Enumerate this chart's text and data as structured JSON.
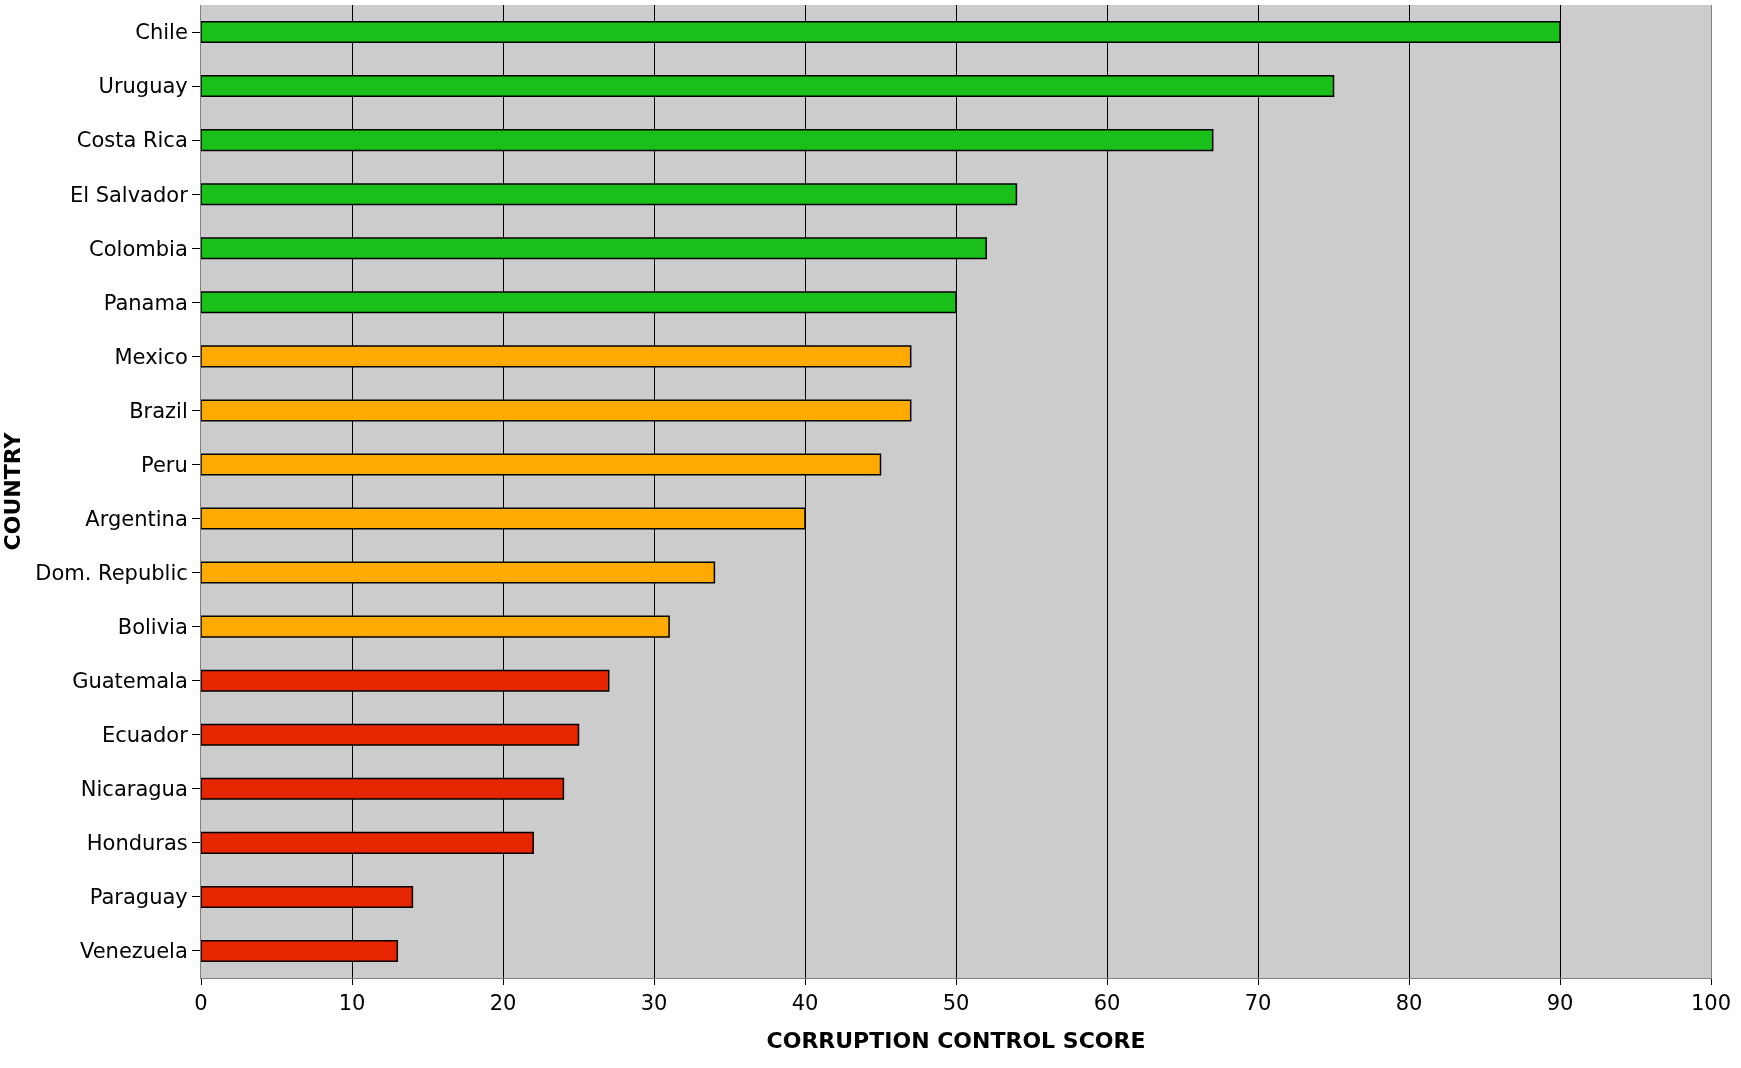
{
  "chart_data": {
    "type": "bar",
    "orientation": "horizontal",
    "xlabel": "CORRUPTION CONTROL SCORE",
    "ylabel": "COUNTRY",
    "categories": [
      "Chile",
      "Uruguay",
      "Costa Rica",
      "El Salvador",
      "Colombia",
      "Panama",
      "Mexico",
      "Brazil",
      "Peru",
      "Argentina",
      "Dom. Republic",
      "Bolivia",
      "Guatemala",
      "Ecuador",
      "Nicaragua",
      "Honduras",
      "Paraguay",
      "Venezuela"
    ],
    "values": [
      90,
      75,
      67,
      54,
      52,
      50,
      47,
      47,
      45,
      40,
      34,
      31,
      27,
      25,
      24,
      22,
      14,
      13
    ],
    "colors": [
      "#1abf1a",
      "#1abf1a",
      "#1abf1a",
      "#1abf1a",
      "#1abf1a",
      "#1abf1a",
      "#ffaa00",
      "#ffaa00",
      "#ffaa00",
      "#ffaa00",
      "#ffaa00",
      "#ffaa00",
      "#e62600",
      "#e62600",
      "#e62600",
      "#e62600",
      "#e62600",
      "#e62600"
    ],
    "xlim": [
      0,
      100
    ],
    "xticks": [
      0,
      10,
      20,
      30,
      40,
      50,
      60,
      70,
      80,
      90,
      100
    ],
    "grid": "x"
  }
}
